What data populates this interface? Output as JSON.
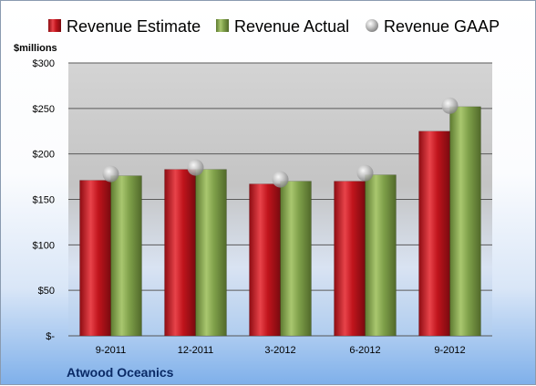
{
  "chart_data": {
    "type": "bar",
    "unit_label": "$millions",
    "categories": [
      "9-2011",
      "12-2011",
      "3-2012",
      "6-2012",
      "9-2012"
    ],
    "series": [
      {
        "name": "Revenue Estimate",
        "type": "bar",
        "color": "#c0141c",
        "values": [
          171,
          183,
          167,
          170,
          225
        ]
      },
      {
        "name": "Revenue Actual",
        "type": "bar",
        "color": "#7fa04a",
        "values": [
          176,
          183,
          170,
          177,
          252
        ]
      },
      {
        "name": "Revenue GAAP",
        "type": "marker",
        "color": "#a6a6a6",
        "values": [
          178,
          185,
          172,
          179,
          253
        ]
      }
    ],
    "ylim": [
      0,
      300
    ],
    "yticks": [
      0,
      50,
      100,
      150,
      200,
      250,
      300
    ],
    "ytick_labels": [
      "$-",
      "$50",
      "$100",
      "$150",
      "$200",
      "$250",
      "$300"
    ],
    "grid": true,
    "legend_position": "top",
    "company": "Atwood Oceanics"
  }
}
